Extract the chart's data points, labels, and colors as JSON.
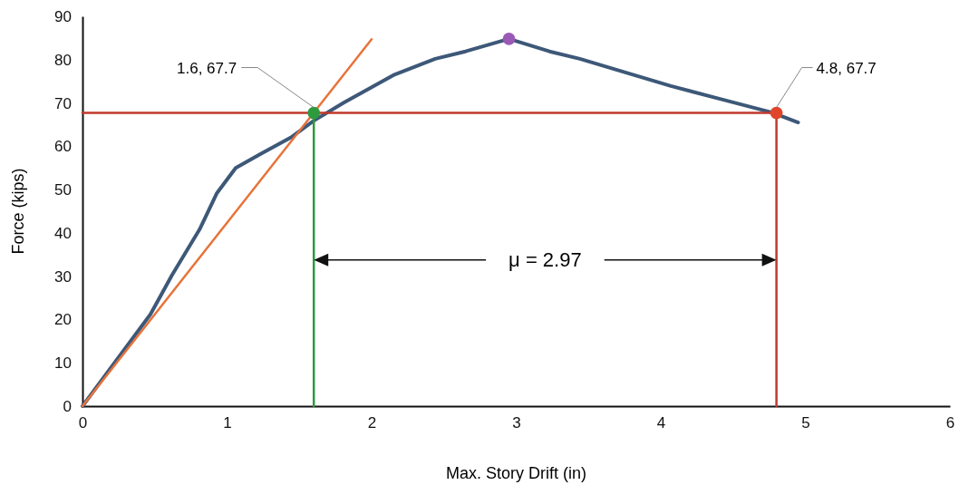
{
  "chart_data": {
    "type": "line",
    "xlabel": "Max. Story Drift (in)",
    "ylabel": "Force (kips)",
    "xlim": [
      0,
      6
    ],
    "ylim": [
      0,
      90
    ],
    "xticks": [
      0,
      1,
      2,
      3,
      4,
      5,
      6
    ],
    "yticks": [
      0,
      10,
      20,
      30,
      40,
      50,
      60,
      70,
      80,
      90
    ],
    "grid": false,
    "line_style": "solid",
    "series": [
      {
        "color": "#3d5878",
        "x": [
          0,
          0.47,
          0.62,
          0.81,
          0.93,
          1.06,
          1.23,
          1.44,
          1.6,
          1.81,
          2.15,
          2.44,
          2.65,
          2.95,
          3.23,
          3.44,
          3.76,
          4.07,
          4.38,
          4.77,
          4.95
        ],
        "values": [
          0,
          21.2,
          30.3,
          40.8,
          49.2,
          55.0,
          58.2,
          62.0,
          65.9,
          70.1,
          76.4,
          80.2,
          81.9,
          84.8,
          81.9,
          80.2,
          77.0,
          73.9,
          71.2,
          67.8,
          65.5
        ]
      },
      {
        "color": "#e8733a",
        "x": [
          0,
          2.0
        ],
        "values": [
          0,
          84.7
        ]
      },
      {
        "color": "#c0392b",
        "x": [
          0,
          4.8
        ],
        "values": [
          67.7,
          67.7
        ]
      },
      {
        "color": "#2e9a3e",
        "x": [
          1.6,
          1.6
        ],
        "values": [
          0,
          67.7
        ]
      },
      {
        "color": "#c0392b",
        "x": [
          4.8,
          4.8
        ],
        "values": [
          0,
          67.7
        ]
      },
      {
        "type": "scatter",
        "marker": "circle",
        "x": [
          1.6,
          2.95,
          4.8
        ],
        "values": [
          67.7,
          84.8,
          67.7
        ],
        "colors": [
          "#2e9a3e",
          "#9b59b6",
          "#e0452c"
        ]
      }
    ],
    "annotations": [
      {
        "text": "1.6, 67.7",
        "x": 1.6,
        "y": 67.7
      },
      {
        "text": "4.8, 67.7",
        "x": 4.8,
        "y": 67.7
      },
      "μ = 2.97"
    ]
  }
}
